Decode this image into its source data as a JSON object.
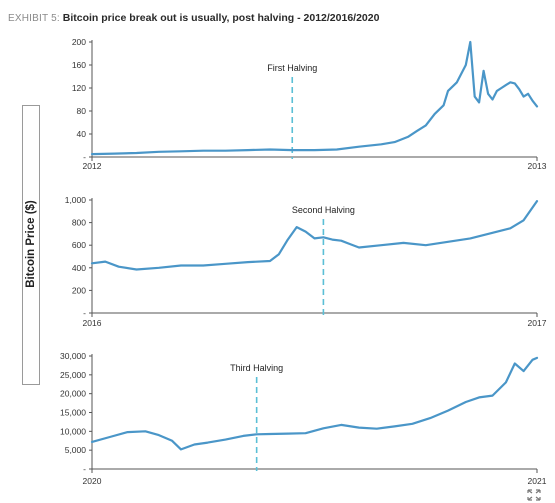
{
  "header": {
    "exhibit": "EXHIBIT 5:",
    "title": "Bitcoin price break out is usually, post halving - 2012/2016/2020"
  },
  "y_axis_label": "Bitcoin Price ($)",
  "line_color": "#4a96c8",
  "marker_color": "#5bbfd6",
  "expand_icon": "expand-arrows-icon",
  "chart_data": [
    {
      "type": "line",
      "ylim": [
        0,
        200
      ],
      "yticks": [
        "-",
        "40",
        "80",
        "120",
        "160",
        "200"
      ],
      "x_ticks": [
        "2012",
        "2013"
      ],
      "annotation": "First Halving",
      "marker_x": 0.45,
      "series": [
        {
          "x": [
            0.0,
            0.05,
            0.1,
            0.15,
            0.2,
            0.25,
            0.3,
            0.35,
            0.4,
            0.45,
            0.5,
            0.55,
            0.6,
            0.65,
            0.68,
            0.71,
            0.73,
            0.75,
            0.77,
            0.79,
            0.8,
            0.82,
            0.84,
            0.85,
            0.86,
            0.87,
            0.88,
            0.89,
            0.9,
            0.91,
            0.92,
            0.93,
            0.94,
            0.95,
            0.96,
            0.97,
            0.98,
            0.99,
            1.0
          ],
          "values": [
            5,
            6,
            7,
            9,
            10,
            11,
            11,
            12,
            13,
            12,
            12,
            13,
            18,
            22,
            26,
            35,
            45,
            55,
            75,
            90,
            115,
            130,
            160,
            200,
            105,
            95,
            150,
            110,
            100,
            115,
            120,
            125,
            130,
            128,
            118,
            105,
            110,
            98,
            88
          ]
        }
      ]
    },
    {
      "type": "line",
      "ylim": [
        0,
        1000
      ],
      "yticks": [
        "-",
        "200",
        "400",
        "600",
        "800",
        "1,000"
      ],
      "x_ticks": [
        "2016",
        "2017"
      ],
      "annotation": "Second Halving",
      "marker_x": 0.52,
      "series": [
        {
          "x": [
            0.0,
            0.03,
            0.06,
            0.1,
            0.15,
            0.2,
            0.25,
            0.3,
            0.35,
            0.4,
            0.42,
            0.44,
            0.46,
            0.48,
            0.5,
            0.52,
            0.54,
            0.56,
            0.58,
            0.6,
            0.65,
            0.7,
            0.75,
            0.8,
            0.85,
            0.9,
            0.94,
            0.97,
            1.0
          ],
          "values": [
            440,
            455,
            410,
            385,
            400,
            420,
            420,
            435,
            450,
            460,
            520,
            650,
            760,
            720,
            660,
            670,
            650,
            640,
            610,
            580,
            600,
            620,
            600,
            630,
            660,
            710,
            750,
            820,
            990
          ]
        }
      ]
    },
    {
      "type": "line",
      "ylim": [
        0,
        30000
      ],
      "yticks": [
        "-",
        "5,000",
        "10,000",
        "15,000",
        "20,000",
        "25,000",
        "30,000"
      ],
      "x_ticks": [
        "2020",
        "2021"
      ],
      "annotation": "Third Halving",
      "marker_x": 0.37,
      "series": [
        {
          "x": [
            0.0,
            0.04,
            0.08,
            0.12,
            0.15,
            0.18,
            0.2,
            0.23,
            0.26,
            0.3,
            0.34,
            0.37,
            0.4,
            0.44,
            0.48,
            0.52,
            0.56,
            0.6,
            0.64,
            0.68,
            0.72,
            0.76,
            0.8,
            0.84,
            0.87,
            0.9,
            0.93,
            0.95,
            0.97,
            0.99,
            1.0
          ],
          "values": [
            7200,
            8500,
            9800,
            10000,
            9000,
            7500,
            5200,
            6500,
            7000,
            7800,
            8800,
            9200,
            9300,
            9400,
            9500,
            10800,
            11700,
            11000,
            10700,
            11300,
            12000,
            13500,
            15500,
            17800,
            19000,
            19500,
            23000,
            28000,
            26000,
            29000,
            29500
          ]
        }
      ]
    }
  ]
}
